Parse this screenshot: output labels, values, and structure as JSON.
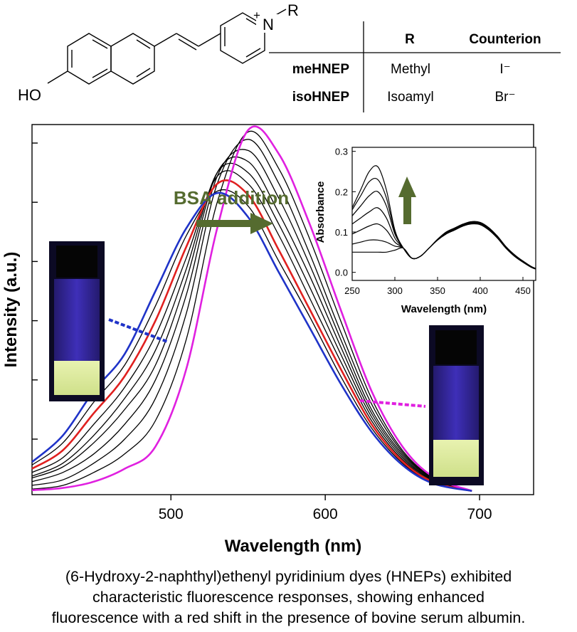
{
  "structure": {
    "substituent": "R",
    "hydroxyl": "HO",
    "nitrogen": "N",
    "charge": "+"
  },
  "table": {
    "headers": [
      "",
      "R",
      "Counterion"
    ],
    "rows": [
      {
        "name": "meHNEP",
        "r": "Methyl",
        "counterion": "I⁻"
      },
      {
        "name": "isoHNEP",
        "r": "Isoamyl",
        "counterion": "Br⁻"
      }
    ]
  },
  "chart_data": [
    {
      "type": "line",
      "title": "",
      "xlabel": "Wavelength (nm)",
      "ylabel": "Intensity (a.u.)",
      "xlim": [
        410,
        735
      ],
      "ylim": [
        0,
        1
      ],
      "xticks": [
        500,
        600,
        700
      ],
      "yticks_labeled": false,
      "annotation": "BSA addition",
      "annotation_color": "#556b2f",
      "line_colors": {
        "initial": "#1f33c8",
        "intermediate": "#000000",
        "highlight": "#e0201f",
        "final": "#e020e0"
      },
      "series": [
        {
          "x": [
            410,
            430,
            450,
            470,
            490,
            510,
            530,
            550,
            570,
            590,
            610,
            630,
            650,
            670,
            695
          ],
          "y": [
            0.088,
            0.16,
            0.28,
            0.38,
            0.55,
            0.72,
            0.815,
            0.75,
            0.6,
            0.45,
            0.3,
            0.17,
            0.08,
            0.03,
            0.01
          ]
        },
        {
          "x": [
            410,
            430,
            450,
            470,
            490,
            510,
            530,
            550,
            570,
            590,
            610,
            630,
            650,
            670,
            695
          ],
          "y": [
            0.08,
            0.14,
            0.25,
            0.35,
            0.51,
            0.7,
            0.82,
            0.78,
            0.63,
            0.48,
            0.32,
            0.18,
            0.085,
            0.032,
            0.01
          ]
        },
        {
          "x": [
            410,
            430,
            450,
            470,
            490,
            510,
            530,
            550,
            570,
            590,
            610,
            630,
            650,
            670,
            695
          ],
          "y": [
            0.07,
            0.12,
            0.22,
            0.32,
            0.47,
            0.67,
            0.84,
            0.81,
            0.66,
            0.5,
            0.34,
            0.19,
            0.09,
            0.034,
            0.01
          ]
        },
        {
          "x": [
            410,
            430,
            450,
            470,
            490,
            510,
            530,
            550,
            570,
            590,
            610,
            630,
            650,
            670,
            695
          ],
          "y": [
            0.06,
            0.1,
            0.19,
            0.29,
            0.43,
            0.64,
            0.86,
            0.84,
            0.7,
            0.53,
            0.36,
            0.2,
            0.095,
            0.036,
            0.01
          ]
        },
        {
          "x": [
            410,
            430,
            450,
            470,
            490,
            510,
            530,
            550,
            570,
            590,
            610,
            630,
            650,
            670,
            695
          ],
          "y": [
            0.05,
            0.085,
            0.16,
            0.26,
            0.39,
            0.61,
            0.87,
            0.87,
            0.73,
            0.56,
            0.38,
            0.21,
            0.1,
            0.038,
            0.01
          ]
        },
        {
          "x": [
            410,
            430,
            450,
            470,
            490,
            510,
            530,
            550,
            570,
            590,
            610,
            630,
            650,
            670,
            695
          ],
          "y": [
            0.045,
            0.075,
            0.14,
            0.23,
            0.35,
            0.58,
            0.87,
            0.9,
            0.76,
            0.59,
            0.4,
            0.22,
            0.105,
            0.04,
            0.01
          ]
        },
        {
          "x": [
            410,
            430,
            450,
            470,
            490,
            510,
            530,
            550,
            570,
            590,
            610,
            630,
            650,
            670,
            695
          ],
          "y": [
            0.035,
            0.06,
            0.11,
            0.19,
            0.31,
            0.54,
            0.86,
            0.93,
            0.8,
            0.62,
            0.42,
            0.23,
            0.11,
            0.042,
            0.01
          ]
        },
        {
          "x": [
            410,
            430,
            450,
            470,
            490,
            510,
            530,
            550,
            570,
            590,
            610,
            630,
            650,
            670,
            695
          ],
          "y": [
            0.025,
            0.04,
            0.085,
            0.15,
            0.26,
            0.49,
            0.84,
            0.96,
            0.84,
            0.65,
            0.44,
            0.245,
            0.115,
            0.044,
            0.01
          ]
        },
        {
          "x": [
            410,
            430,
            450,
            470,
            490,
            510,
            530,
            550,
            570,
            590,
            610,
            630,
            650,
            670,
            695
          ],
          "y": [
            0.015,
            0.025,
            0.06,
            0.11,
            0.2,
            0.42,
            0.79,
            0.98,
            0.88,
            0.69,
            0.47,
            0.26,
            0.12,
            0.046,
            0.01
          ]
        },
        {
          "x": [
            410,
            430,
            450,
            470,
            490,
            510,
            530,
            550,
            570,
            590,
            610,
            630,
            650,
            670,
            695
          ],
          "y": [
            0.012,
            0.018,
            0.035,
            0.07,
            0.13,
            0.34,
            0.72,
            0.985,
            0.92,
            0.73,
            0.5,
            0.28,
            0.13,
            0.048,
            0.01
          ]
        }
      ]
    },
    {
      "type": "line",
      "title": "",
      "xlabel": "Wavelength (nm)",
      "ylabel": "Absorbance",
      "xlim": [
        250,
        465
      ],
      "ylim": [
        -0.02,
        0.31
      ],
      "xticks": [
        250,
        300,
        350,
        400,
        450
      ],
      "yticks": [
        0.0,
        0.1,
        0.2,
        0.3
      ],
      "arrow_color": "#556b2f",
      "series": [
        {
          "x": [
            250,
            260,
            270,
            280,
            290,
            300,
            310,
            320,
            330,
            340,
            350,
            360,
            370,
            380,
            390,
            400,
            410,
            420,
            430,
            440,
            450,
            460,
            465
          ],
          "y": [
            0.05,
            0.05,
            0.05,
            0.05,
            0.05,
            0.055,
            0.06,
            0.035,
            0.04,
            0.06,
            0.08,
            0.095,
            0.105,
            0.115,
            0.12,
            0.118,
            0.105,
            0.085,
            0.06,
            0.04,
            0.025,
            0.012,
            0.008
          ]
        },
        {
          "x": [
            250,
            260,
            270,
            280,
            290,
            300,
            310,
            320,
            330,
            340,
            350,
            360,
            370,
            380,
            390,
            400,
            410,
            420,
            430,
            440,
            450,
            460,
            465
          ],
          "y": [
            0.07,
            0.075,
            0.08,
            0.08,
            0.075,
            0.065,
            0.06,
            0.035,
            0.04,
            0.06,
            0.08,
            0.095,
            0.105,
            0.115,
            0.121,
            0.119,
            0.106,
            0.086,
            0.061,
            0.041,
            0.026,
            0.013,
            0.009
          ]
        },
        {
          "x": [
            250,
            260,
            270,
            280,
            290,
            300,
            310,
            320,
            330,
            340,
            350,
            360,
            370,
            380,
            390,
            400,
            410,
            420,
            430,
            440,
            450,
            460,
            465
          ],
          "y": [
            0.095,
            0.105,
            0.115,
            0.12,
            0.105,
            0.075,
            0.06,
            0.035,
            0.04,
            0.06,
            0.08,
            0.096,
            0.106,
            0.116,
            0.122,
            0.12,
            0.107,
            0.087,
            0.062,
            0.042,
            0.026,
            0.013,
            0.009
          ]
        },
        {
          "x": [
            250,
            260,
            270,
            280,
            290,
            300,
            310,
            320,
            330,
            340,
            350,
            360,
            370,
            380,
            390,
            400,
            410,
            420,
            430,
            440,
            450,
            460,
            465
          ],
          "y": [
            0.12,
            0.135,
            0.15,
            0.16,
            0.135,
            0.085,
            0.06,
            0.035,
            0.04,
            0.06,
            0.081,
            0.097,
            0.107,
            0.117,
            0.123,
            0.121,
            0.108,
            0.088,
            0.063,
            0.042,
            0.027,
            0.013,
            0.009
          ]
        },
        {
          "x": [
            250,
            260,
            270,
            280,
            290,
            300,
            310,
            320,
            330,
            340,
            350,
            360,
            370,
            380,
            390,
            400,
            410,
            420,
            430,
            440,
            450,
            460,
            465
          ],
          "y": [
            0.14,
            0.165,
            0.19,
            0.2,
            0.165,
            0.095,
            0.06,
            0.035,
            0.04,
            0.06,
            0.081,
            0.098,
            0.108,
            0.118,
            0.124,
            0.122,
            0.109,
            0.089,
            0.063,
            0.043,
            0.027,
            0.014,
            0.009
          ]
        },
        {
          "x": [
            250,
            260,
            270,
            280,
            290,
            300,
            310,
            320,
            330,
            340,
            350,
            360,
            370,
            380,
            390,
            400,
            410,
            420,
            430,
            440,
            450,
            460,
            465
          ],
          "y": [
            0.155,
            0.19,
            0.225,
            0.23,
            0.185,
            0.1,
            0.06,
            0.035,
            0.04,
            0.06,
            0.082,
            0.099,
            0.109,
            0.119,
            0.125,
            0.123,
            0.11,
            0.09,
            0.064,
            0.043,
            0.028,
            0.014,
            0.009
          ]
        },
        {
          "x": [
            250,
            260,
            270,
            280,
            290,
            300,
            310,
            320,
            330,
            340,
            350,
            360,
            370,
            380,
            390,
            400,
            410,
            420,
            430,
            440,
            450,
            460,
            465
          ],
          "y": [
            0.16,
            0.205,
            0.25,
            0.262,
            0.205,
            0.105,
            0.06,
            0.035,
            0.04,
            0.06,
            0.082,
            0.1,
            0.11,
            0.12,
            0.126,
            0.124,
            0.111,
            0.09,
            0.064,
            0.044,
            0.028,
            0.014,
            0.01
          ]
        }
      ]
    }
  ]
}
